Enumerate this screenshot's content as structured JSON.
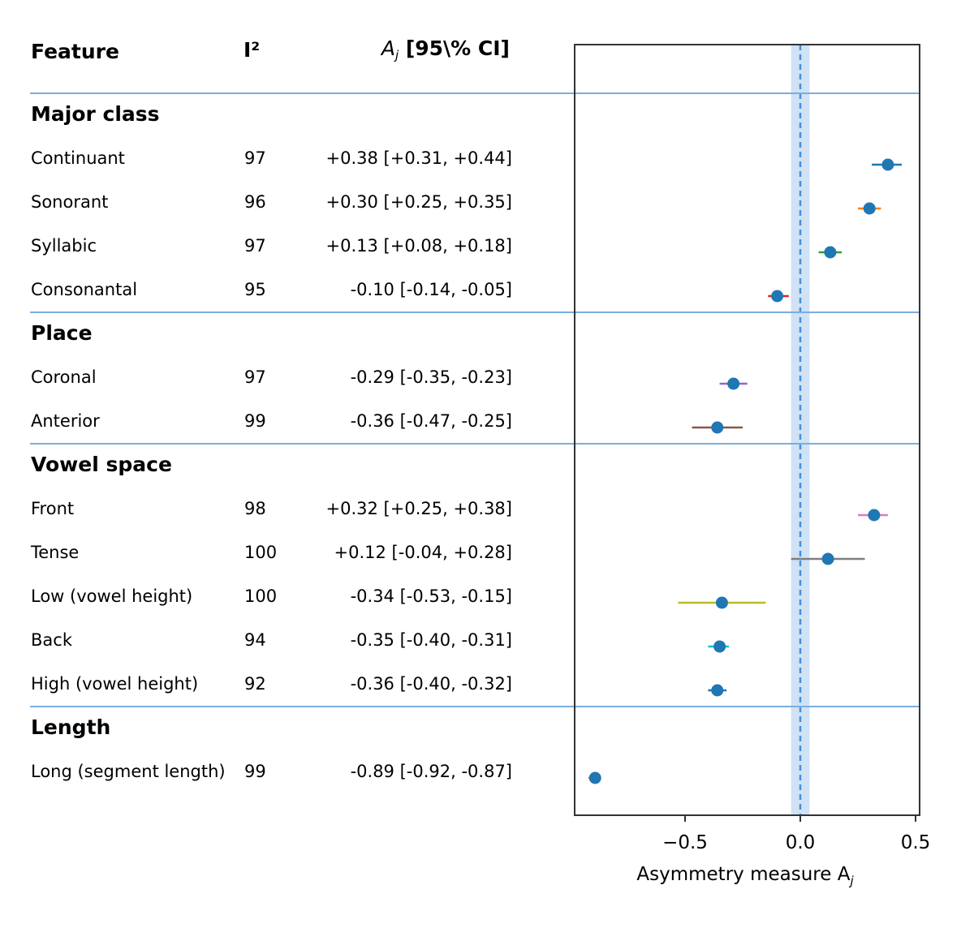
{
  "chart_data": {
    "type": "forest",
    "columns": {
      "feature": "Feature",
      "i2": "I²",
      "estimate_pre": "A",
      "estimate_sub": "j",
      "estimate_post": " [95\\% CI]"
    },
    "xlabel_pre": "Asymmetry measure A",
    "xlabel_sub": "j",
    "xlim": [
      -0.95,
      0.52
    ],
    "xticks": [
      {
        "value": -0.5,
        "label": "−0.5"
      },
      {
        "value": 0.0,
        "label": "0.0"
      },
      {
        "value": 0.5,
        "label": "0.5"
      }
    ],
    "reference_line": 0.0,
    "reference_band": [
      -0.04,
      0.04
    ],
    "groups": [
      {
        "name": "Major class",
        "rows": [
          {
            "feature": "Continuant",
            "i2": "97",
            "text": "+0.38 [+0.31, +0.44]",
            "est": 0.38,
            "lo": 0.31,
            "hi": 0.44,
            "ci_color": "#1f77b4"
          },
          {
            "feature": "Sonorant",
            "i2": "96",
            "text": "+0.30 [+0.25, +0.35]",
            "est": 0.3,
            "lo": 0.25,
            "hi": 0.35,
            "ci_color": "#ff7f0e"
          },
          {
            "feature": "Syllabic",
            "i2": "97",
            "text": "+0.13 [+0.08, +0.18]",
            "est": 0.13,
            "lo": 0.08,
            "hi": 0.18,
            "ci_color": "#2ca02c"
          },
          {
            "feature": "Consonantal",
            "i2": "95",
            "text": "-0.10 [-0.14, -0.05]",
            "est": -0.1,
            "lo": -0.14,
            "hi": -0.05,
            "ci_color": "#d62728"
          }
        ]
      },
      {
        "name": "Place",
        "rows": [
          {
            "feature": "Coronal",
            "i2": "97",
            "text": "-0.29 [-0.35, -0.23]",
            "est": -0.29,
            "lo": -0.35,
            "hi": -0.23,
            "ci_color": "#9467bd"
          },
          {
            "feature": "Anterior",
            "i2": "99",
            "text": "-0.36 [-0.47, -0.25]",
            "est": -0.36,
            "lo": -0.47,
            "hi": -0.25,
            "ci_color": "#8c564b"
          }
        ]
      },
      {
        "name": "Vowel space",
        "rows": [
          {
            "feature": "Front",
            "i2": "98",
            "text": "+0.32 [+0.25, +0.38]",
            "est": 0.32,
            "lo": 0.25,
            "hi": 0.38,
            "ci_color": "#e377c2"
          },
          {
            "feature": "Tense",
            "i2": "100",
            "text": "+0.12 [-0.04, +0.28]",
            "est": 0.12,
            "lo": -0.04,
            "hi": 0.28,
            "ci_color": "#7f7f7f"
          },
          {
            "feature": "Low (vowel height)",
            "i2": "100",
            "text": "-0.34 [-0.53, -0.15]",
            "est": -0.34,
            "lo": -0.53,
            "hi": -0.15,
            "ci_color": "#bcbd22"
          },
          {
            "feature": "Back",
            "i2": "94",
            "text": "-0.35 [-0.40, -0.31]",
            "est": -0.35,
            "lo": -0.4,
            "hi": -0.31,
            "ci_color": "#17becf"
          },
          {
            "feature": "High (vowel height)",
            "i2": "92",
            "text": "-0.36 [-0.40, -0.32]",
            "est": -0.36,
            "lo": -0.4,
            "hi": -0.32,
            "ci_color": "#1f77b4"
          }
        ]
      },
      {
        "name": "Length",
        "rows": [
          {
            "feature": "Long (segment length)",
            "i2": "99",
            "text": "-0.89 [-0.92, -0.87]",
            "est": -0.89,
            "lo": -0.92,
            "hi": -0.87,
            "ci_color": "#ff7f0e"
          }
        ]
      }
    ],
    "point_color": "#1f77b4",
    "separator_color": "#7aaee0",
    "band_color": "#cfe2f6",
    "ref_color": "#4a8fd6"
  }
}
